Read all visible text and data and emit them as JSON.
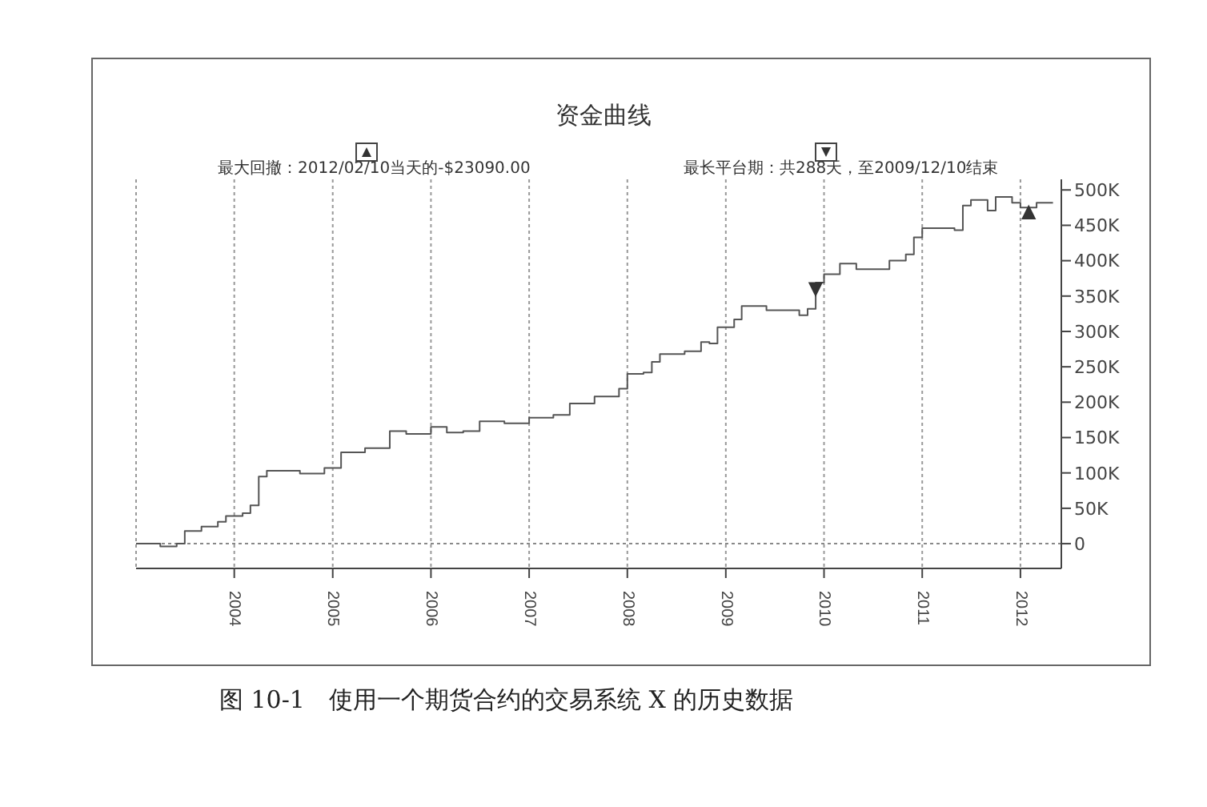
{
  "chart_data": {
    "type": "step",
    "title": "资金曲线",
    "x": [
      "2003-01",
      "2003-04",
      "2003-06",
      "2003-07",
      "2003-09",
      "2003-11",
      "2003-12",
      "2004-02",
      "2004-03",
      "2004-04",
      "2004-05",
      "2004-09",
      "2004-12",
      "2005-02",
      "2005-05",
      "2005-07",
      "2005-08",
      "2005-10",
      "2006-01",
      "2006-03",
      "2006-05",
      "2006-07",
      "2006-10",
      "2007-01",
      "2007-04",
      "2007-06",
      "2007-09",
      "2007-12",
      "2008-01",
      "2008-03",
      "2008-04",
      "2008-05",
      "2008-08",
      "2008-10",
      "2008-11",
      "2008-12",
      "2009-02",
      "2009-03",
      "2009-06",
      "2009-10",
      "2009-11",
      "2009-12",
      "2010-01",
      "2010-03",
      "2010-05",
      "2010-09",
      "2010-11",
      "2010-12",
      "2011-01",
      "2011-05",
      "2011-06",
      "2011-07",
      "2011-09",
      "2011-10",
      "2011-12",
      "2012-01",
      "2012-03",
      "2012-05"
    ],
    "series": [
      {
        "color": "#555555",
        "values": [
          0,
          -4000,
          0,
          18000,
          24000,
          31000,
          39000,
          43000,
          54000,
          95000,
          103000,
          99000,
          107000,
          129000,
          135000,
          135000,
          159000,
          155000,
          165000,
          157000,
          159000,
          173000,
          170000,
          178000,
          182000,
          198000,
          208000,
          219000,
          240000,
          242000,
          257000,
          268000,
          272000,
          285000,
          283000,
          306000,
          317000,
          336000,
          330000,
          323000,
          332000,
          369000,
          381000,
          396000,
          388000,
          400000,
          409000,
          433000,
          446000,
          443000,
          478000,
          486000,
          471000,
          490000,
          482000,
          475000,
          482000,
          482000
        ]
      }
    ],
    "xlim": [
      "2003-01",
      "2012-06"
    ],
    "xticks": [
      "2004",
      "2005",
      "2006",
      "2007",
      "2008",
      "2009",
      "2010",
      "2011",
      "2012"
    ],
    "ylim": [
      -35000,
      515000
    ],
    "yticks": [
      {
        "value": 0,
        "label": "0"
      },
      {
        "value": 50000,
        "label": "50K"
      },
      {
        "value": 100000,
        "label": "100K"
      },
      {
        "value": 150000,
        "label": "150K"
      },
      {
        "value": 200000,
        "label": "200K"
      },
      {
        "value": 250000,
        "label": "250K"
      },
      {
        "value": 300000,
        "label": "300K"
      },
      {
        "value": 350000,
        "label": "350K"
      },
      {
        "value": 400000,
        "label": "400K"
      },
      {
        "value": 450000,
        "label": "450K"
      },
      {
        "value": 500000,
        "label": "500K"
      }
    ],
    "grid": "x",
    "ref_lines": [
      {
        "axis": "y",
        "value": 0,
        "color": "#888888",
        "line_style": "dotted"
      }
    ],
    "annotations": [
      "最大回撤：2012/02/10当天的-$23090.00",
      "最长平台期：共288天，至2009/12/10结束",
      {
        "text": "▼",
        "x": "2009-12",
        "y": 362000
      },
      {
        "text": "▲",
        "x": "2012-02",
        "y": 471000
      },
      "图 10-1　使用一个期货合约的交易系统 X 的历史数据"
    ]
  }
}
